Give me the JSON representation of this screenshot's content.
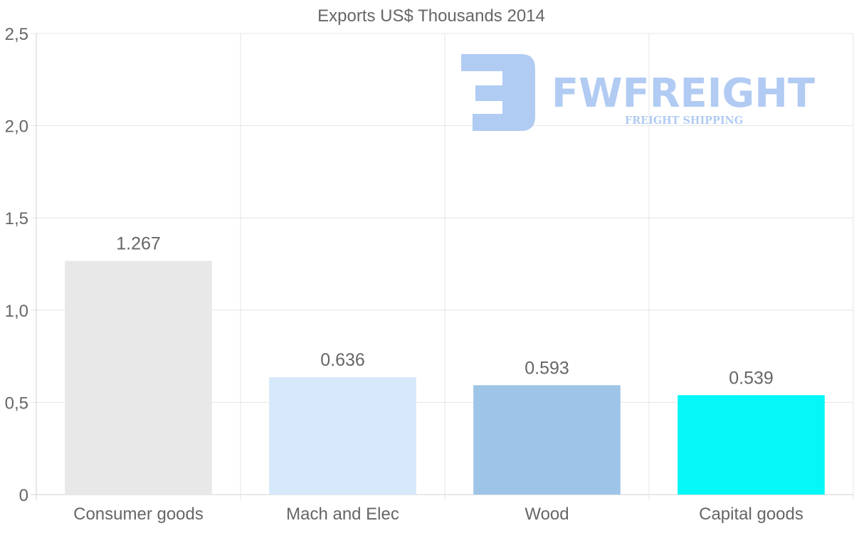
{
  "chart_data": {
    "type": "bar",
    "title": "Exports US$ Thousands 2014",
    "categories": [
      "Consumer goods",
      "Mach and Elec",
      "Wood",
      "Capital goods"
    ],
    "values": [
      1.267,
      0.636,
      0.593,
      0.539
    ],
    "value_labels": [
      "1.267",
      "0.636",
      "0.593",
      "0.539"
    ],
    "colors": [
      "#e8e8e8",
      "#d6e8fa",
      "#9ec5e7",
      "#05f7f7"
    ],
    "ylim": [
      0,
      2.5
    ],
    "yticks": [
      0,
      0.5,
      1.0,
      1.5,
      2.0,
      2.5
    ],
    "ytick_labels": [
      "0",
      "0,5",
      "1,0",
      "1,5",
      "2,0",
      "2,5"
    ],
    "xlabel": "",
    "ylabel": "",
    "grid": true
  },
  "watermark": {
    "brand": "FWFREIGHT",
    "tagline": "FREIGHT SHIPPING",
    "color": "#a9c6f2"
  }
}
